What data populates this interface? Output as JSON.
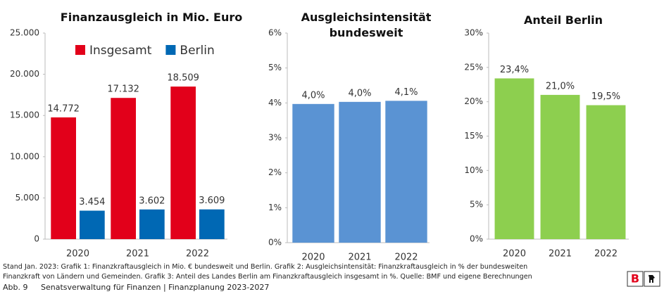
{
  "chart_data": [
    {
      "type": "bar",
      "title": "Finanzausgleich in Mio. Euro",
      "categories": [
        "2020",
        "2021",
        "2022"
      ],
      "series": [
        {
          "name": "Insgesamt",
          "color": "#e2001a",
          "values": [
            14772,
            17132,
            18509
          ],
          "value_labels": [
            "14.772",
            "17.132",
            "18.509"
          ]
        },
        {
          "name": "Berlin",
          "color": "#0068b4",
          "values": [
            3454,
            3602,
            3609
          ],
          "value_labels": [
            "3.454",
            "3.602",
            "3.609"
          ]
        }
      ],
      "ylim": [
        0,
        25000
      ],
      "yticks": [
        0,
        {
          "value": 5000,
          "label": "5.000"
        },
        {
          "value": 10000,
          "label": "10.000"
        },
        {
          "value": 15000,
          "label": "15.000"
        },
        {
          "value": 20000,
          "label": "20.000"
        },
        {
          "value": 25000,
          "label": "25.000"
        }
      ],
      "legend": "top"
    },
    {
      "type": "bar",
      "title": "Ausgleichsintensität bundesweit",
      "categories": [
        "2020",
        "2021",
        "2022"
      ],
      "values": [
        3.97,
        4.03,
        4.06
      ],
      "value_labels": [
        "4,0%",
        "4,0%",
        "4,1%"
      ],
      "color": "#5a93d3",
      "ylim": [
        0,
        6
      ],
      "yticks": [
        {
          "value": 0,
          "label": "0%"
        },
        {
          "value": 1,
          "label": "1%"
        },
        {
          "value": 2,
          "label": "2%"
        },
        {
          "value": 3,
          "label": "3%"
        },
        {
          "value": 4,
          "label": "4%"
        },
        {
          "value": 5,
          "label": "5%"
        },
        {
          "value": 6,
          "label": "6%"
        }
      ]
    },
    {
      "type": "bar",
      "title": "Anteil Berlin",
      "categories": [
        "2020",
        "2021",
        "2022"
      ],
      "values": [
        23.4,
        21.0,
        19.5
      ],
      "value_labels": [
        "23,4%",
        "21,0%",
        "19,5%"
      ],
      "color": "#8dcf4f",
      "ylim": [
        0,
        30
      ],
      "yticks": [
        {
          "value": 0,
          "label": "0%"
        },
        {
          "value": 5,
          "label": "5%"
        },
        {
          "value": 10,
          "label": "10%"
        },
        {
          "value": 15,
          "label": "15%"
        },
        {
          "value": 20,
          "label": "20%"
        },
        {
          "value": 25,
          "label": "25%"
        },
        {
          "value": 30,
          "label": "30%"
        }
      ]
    }
  ],
  "footer": {
    "lines": [
      "Stand Jan. 2023: Grafik 1: Finanzkraftausgleich in Mio. € bundesweit und Berlin. Grafik 2: Ausgleichsintensität: Finanzkraftausgleich in % der bundesweiten",
      "Finanzkraft von Ländern und Gemeinden. Grafik 3: Anteil des Landes Berlin am Finanzkraftausgleich insgesamt in %. Quelle: BMF und eigene Berechnungen"
    ],
    "figure": "Abb. 9",
    "source": "Senatsverwaltung für Finanzen | Finanzplanung 2023-2027",
    "logo": "B"
  }
}
